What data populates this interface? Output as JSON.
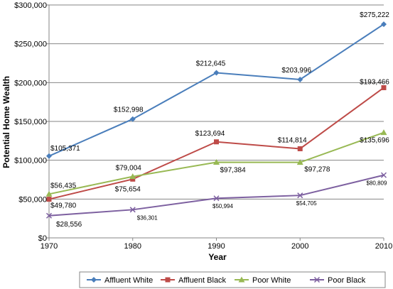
{
  "chart_data": {
    "type": "line",
    "categories": [
      "1970",
      "1980",
      "1990",
      "2000",
      "2010"
    ],
    "xlabel": "Year",
    "ylabel": "Potential Home Wealth",
    "ylim": [
      0,
      300000
    ],
    "yticks": [
      "$0",
      "$50,000",
      "$100,000",
      "$150,000",
      "$200,000",
      "$250,000",
      "$300,000"
    ],
    "grid": true,
    "legend_position": "bottom",
    "series": [
      {
        "name": "Affluent White",
        "color": "#4a7ebb",
        "marker": "diamond",
        "values": [
          105371,
          152998,
          212645,
          203996,
          275222
        ],
        "labels": [
          "$105,371",
          "$152,998",
          "$212,645",
          "$203,996",
          "$275,222"
        ]
      },
      {
        "name": "Affluent Black",
        "color": "#be4b48",
        "marker": "square",
        "values": [
          49780,
          75654,
          123694,
          114814,
          193466
        ],
        "labels": [
          "$49,780",
          "$75,654",
          "$123,694",
          "$114,814",
          "$193,466"
        ]
      },
      {
        "name": "Poor White",
        "color": "#98b954",
        "marker": "triangle",
        "values": [
          56435,
          79004,
          97384,
          97278,
          135696
        ],
        "labels": [
          "$56,435",
          "$79,004",
          "$97,384",
          "$97,278",
          "$135,696"
        ]
      },
      {
        "name": "Poor Black",
        "color": "#7d60a0",
        "marker": "x",
        "values": [
          28556,
          36301,
          50994,
          54705,
          80809
        ],
        "labels": [
          "$28,556",
          "$36,301",
          "$50,994",
          "$54,705",
          "$80,809"
        ]
      }
    ]
  }
}
